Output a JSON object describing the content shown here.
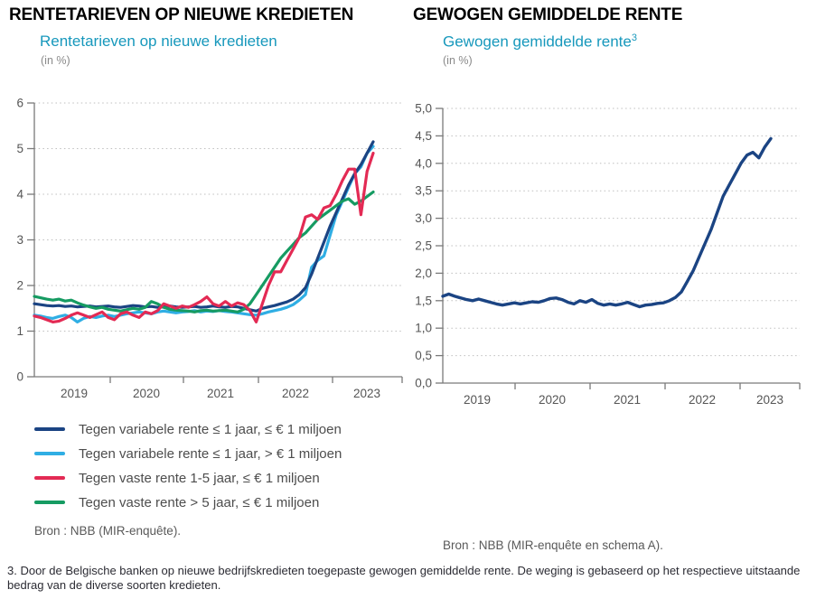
{
  "footnote": "3. Door de Belgische banken op nieuwe bedrijfskredieten toegepaste gewogen gemiddelde rente. De weging is gebaseerd op het respectieve uitstaande bedrag van de diverse soorten kredieten.",
  "chart_data": [
    {
      "type": "line",
      "heading": "RENTETARIEVEN OP NIEUWE KREDIETEN",
      "title": "Rentetarieven op nieuwe kredieten",
      "unit": "(in %)",
      "x_frequency": "monthly, Dec 2018 - Jul 2023",
      "x_labels": [
        "2019",
        "2020",
        "2021",
        "2022",
        "2023"
      ],
      "ylim": [
        0,
        6
      ],
      "ytick_labels": [
        "0",
        "1",
        "2",
        "3",
        "4",
        "5",
        "6"
      ],
      "grid": "dotted horizontal",
      "legend_position": "below left",
      "source": "Bron : NBB (MIR-enquête).",
      "series": [
        {
          "name": "Tegen variabele rente ≤ 1 jaar, ≤ € 1 miljoen",
          "color": "#1B4483",
          "values": [
            1.6,
            1.58,
            1.56,
            1.55,
            1.56,
            1.54,
            1.55,
            1.53,
            1.54,
            1.55,
            1.53,
            1.54,
            1.55,
            1.53,
            1.52,
            1.54,
            1.56,
            1.55,
            1.53,
            1.54,
            1.52,
            1.53,
            1.55,
            1.53,
            1.52,
            1.53,
            1.54,
            1.52,
            1.53,
            1.55,
            1.53,
            1.52,
            1.54,
            1.53,
            1.5,
            1.47,
            1.44,
            1.5,
            1.53,
            1.56,
            1.6,
            1.64,
            1.7,
            1.8,
            1.95,
            2.25,
            2.6,
            2.95,
            3.3,
            3.6,
            3.9,
            4.2,
            4.45,
            4.65,
            4.9,
            5.15
          ]
        },
        {
          "name": "Tegen variabele rente ≤ 1 jaar, > € 1 miljoen",
          "color": "#2FAEE4",
          "values": [
            1.35,
            1.33,
            1.3,
            1.28,
            1.32,
            1.35,
            1.3,
            1.2,
            1.28,
            1.32,
            1.3,
            1.33,
            1.35,
            1.32,
            1.35,
            1.38,
            1.4,
            1.42,
            1.4,
            1.38,
            1.42,
            1.44,
            1.42,
            1.4,
            1.42,
            1.43,
            1.45,
            1.42,
            1.44,
            1.43,
            1.45,
            1.43,
            1.42,
            1.4,
            1.38,
            1.36,
            1.35,
            1.38,
            1.42,
            1.45,
            1.48,
            1.52,
            1.58,
            1.68,
            1.8,
            2.4,
            2.55,
            2.65,
            3.1,
            3.55,
            3.85,
            4.15,
            4.45,
            4.6,
            4.9,
            5.05
          ]
        },
        {
          "name": "Tegen vaste rente 1-5 jaar, ≤ € 1 miljoen",
          "color": "#E32A54",
          "values": [
            1.33,
            1.3,
            1.25,
            1.2,
            1.22,
            1.28,
            1.35,
            1.4,
            1.35,
            1.3,
            1.36,
            1.42,
            1.3,
            1.25,
            1.38,
            1.42,
            1.35,
            1.3,
            1.42,
            1.38,
            1.45,
            1.6,
            1.55,
            1.5,
            1.55,
            1.52,
            1.58,
            1.65,
            1.75,
            1.6,
            1.55,
            1.65,
            1.55,
            1.62,
            1.58,
            1.45,
            1.2,
            1.6,
            2.0,
            2.3,
            2.3,
            2.55,
            2.8,
            3.05,
            3.5,
            3.55,
            3.45,
            3.7,
            3.75,
            4.0,
            4.3,
            4.55,
            4.55,
            3.55,
            4.5,
            4.9
          ]
        },
        {
          "name": "Tegen vaste rente > 5 jaar, ≤ € 1 miljoen",
          "color": "#169B62",
          "values": [
            1.76,
            1.73,
            1.7,
            1.68,
            1.7,
            1.66,
            1.68,
            1.62,
            1.57,
            1.53,
            1.5,
            1.52,
            1.48,
            1.46,
            1.44,
            1.47,
            1.5,
            1.48,
            1.52,
            1.65,
            1.6,
            1.52,
            1.48,
            1.46,
            1.45,
            1.44,
            1.42,
            1.45,
            1.46,
            1.44,
            1.45,
            1.46,
            1.44,
            1.42,
            1.48,
            1.6,
            1.8,
            2.0,
            2.2,
            2.4,
            2.6,
            2.75,
            2.9,
            3.05,
            3.15,
            3.3,
            3.45,
            3.55,
            3.65,
            3.75,
            3.85,
            3.9,
            3.78,
            3.85,
            3.95,
            4.05
          ]
        }
      ]
    },
    {
      "type": "line",
      "heading": "GEWOGEN GEMIDDELDE RENTE",
      "title": "Gewogen gemiddelde rente",
      "title_superscript": "3",
      "unit": "(in %)",
      "x_frequency": "monthly, Dec 2018 - Jul 2023",
      "x_labels": [
        "2019",
        "2020",
        "2021",
        "2022",
        "2023"
      ],
      "ylim": [
        0,
        5
      ],
      "ytick_labels": [
        "0,0",
        "0,5",
        "1,0",
        "1,5",
        "2,0",
        "2,5",
        "3,0",
        "3,5",
        "4,0",
        "4,5",
        "5,0"
      ],
      "grid": "dotted horizontal",
      "legend_position": "none",
      "source": "Bron : NBB (MIR-enquête en schema A).",
      "series": [
        {
          "name": "Gewogen gemiddelde rente",
          "color": "#1B4483",
          "values": [
            1.58,
            1.62,
            1.58,
            1.55,
            1.52,
            1.5,
            1.53,
            1.5,
            1.47,
            1.44,
            1.42,
            1.44,
            1.46,
            1.44,
            1.46,
            1.48,
            1.47,
            1.5,
            1.54,
            1.55,
            1.52,
            1.47,
            1.44,
            1.5,
            1.47,
            1.52,
            1.45,
            1.42,
            1.44,
            1.42,
            1.44,
            1.47,
            1.43,
            1.39,
            1.42,
            1.43,
            1.45,
            1.46,
            1.5,
            1.56,
            1.66,
            1.85,
            2.05,
            2.3,
            2.55,
            2.8,
            3.1,
            3.4,
            3.6,
            3.8,
            4.0,
            4.15,
            4.2,
            4.1,
            4.3,
            4.45
          ]
        }
      ]
    }
  ]
}
